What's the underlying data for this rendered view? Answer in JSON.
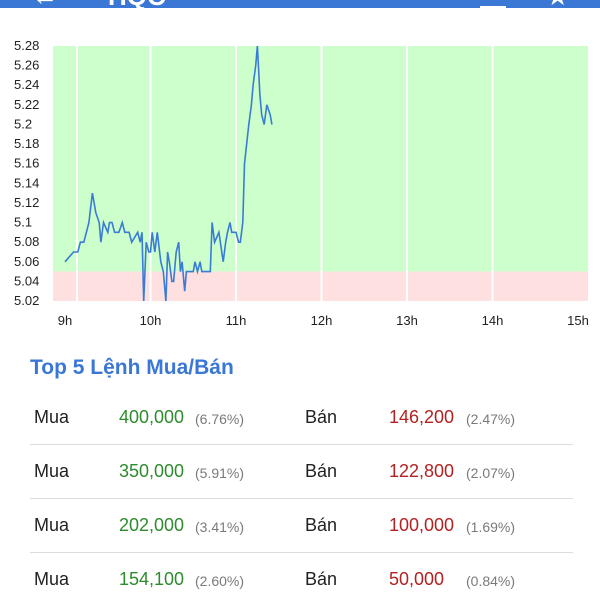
{
  "app_bar": {
    "back_icon": "arrow-back-icon",
    "title": "HQC",
    "actions": [
      "chart-icon",
      "star-icon"
    ],
    "color": "#3b78d6"
  },
  "chart_data": {
    "type": "line",
    "y_ticks": [
      "5.28",
      "5.26",
      "5.24",
      "5.22",
      "5.2",
      "5.18",
      "5.16",
      "5.14",
      "5.12",
      "5.1",
      "5.08",
      "5.06",
      "5.04",
      "5.02"
    ],
    "x_ticks": [
      "9h",
      "10h",
      "11h",
      "12h",
      "13h",
      "14h",
      "15h"
    ],
    "ylim": [
      5.02,
      5.28
    ],
    "reference_price": 5.05,
    "grid": true,
    "colors": {
      "line": "#3a7bd5",
      "above_reference": "#ccffcc",
      "below_reference": "#ffe0e0",
      "grid": "#ffffff"
    },
    "series": [
      {
        "x": [
          9.0,
          9.1,
          9.15,
          9.18,
          9.22,
          9.25,
          9.28,
          9.32,
          9.36,
          9.4,
          9.42,
          9.45,
          9.5,
          9.52,
          9.55,
          9.58,
          9.6,
          9.63,
          9.67,
          9.7,
          9.75,
          9.78,
          9.85,
          9.88,
          9.9,
          9.92,
          9.95,
          9.98,
          10.0,
          10.02,
          10.05,
          10.08,
          10.12,
          10.15,
          10.18,
          10.2,
          10.22,
          10.25,
          10.27,
          10.3,
          10.33,
          10.35,
          10.37,
          10.4,
          10.42,
          10.45,
          10.48,
          10.5,
          10.52,
          10.55,
          10.58,
          10.6,
          10.63,
          10.67,
          10.7,
          10.72,
          10.75,
          10.8,
          10.85,
          10.88,
          10.9,
          10.93,
          10.95,
          10.97,
          11.0,
          11.03,
          11.05,
          11.08,
          11.1,
          11.15,
          11.18,
          11.2,
          11.23,
          11.25,
          11.28,
          11.3,
          11.33,
          11.36,
          11.4,
          11.42
        ],
        "y": [
          5.06,
          5.07,
          5.07,
          5.08,
          5.08,
          5.09,
          5.1,
          5.13,
          5.11,
          5.1,
          5.08,
          5.1,
          5.09,
          5.1,
          5.1,
          5.09,
          5.09,
          5.09,
          5.1,
          5.09,
          5.09,
          5.08,
          5.09,
          5.08,
          5.09,
          5.02,
          5.08,
          5.07,
          5.07,
          5.09,
          5.07,
          5.09,
          5.06,
          5.05,
          5.02,
          5.07,
          5.06,
          5.04,
          5.04,
          5.07,
          5.08,
          5.05,
          5.06,
          5.03,
          5.05,
          5.05,
          5.05,
          5.05,
          5.06,
          5.05,
          5.06,
          5.05,
          5.05,
          5.05,
          5.05,
          5.1,
          5.08,
          5.09,
          5.06,
          5.08,
          5.09,
          5.1,
          5.09,
          5.09,
          5.09,
          5.08,
          5.08,
          5.1,
          5.16,
          5.2,
          5.22,
          5.24,
          5.26,
          5.28,
          5.23,
          5.21,
          5.2,
          5.22,
          5.21,
          5.2
        ]
      }
    ]
  },
  "orders": {
    "title": "Top 5 Lệnh Mua/Bán",
    "buy_label": "Mua",
    "sell_label": "Bán",
    "buy_color": "#2e8b2e",
    "sell_color": "#b22222",
    "rows": [
      {
        "buy_volume": "400,000",
        "buy_pct": "(6.76%)",
        "sell_volume": "146,200",
        "sell_pct": "(2.47%)"
      },
      {
        "buy_volume": "350,000",
        "buy_pct": "(5.91%)",
        "sell_volume": "122,800",
        "sell_pct": "(2.07%)"
      },
      {
        "buy_volume": "202,000",
        "buy_pct": "(3.41%)",
        "sell_volume": "100,000",
        "sell_pct": "(1.69%)"
      },
      {
        "buy_volume": "154,100",
        "buy_pct": "(2.60%)",
        "sell_volume": "50,000",
        "sell_pct": "(0.84%)"
      }
    ]
  }
}
